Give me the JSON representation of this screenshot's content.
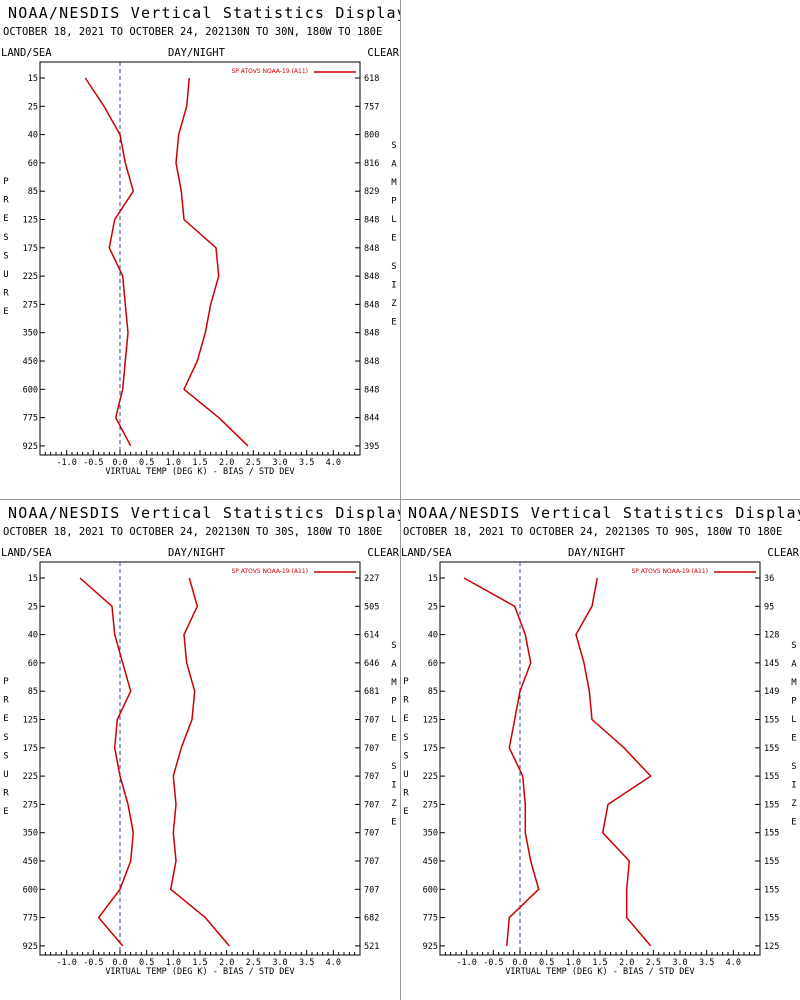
{
  "colors": {
    "series": "#cc0000",
    "zero_line": "#334499",
    "frame": "#000000"
  },
  "pressure_levels": [
    "15",
    "25",
    "40",
    "60",
    "85",
    "125",
    "175",
    "225",
    "275",
    "350",
    "450",
    "600",
    "775",
    "925"
  ],
  "x_ticks": [
    "-1.0",
    "-0.5",
    "0.0",
    "0.5",
    "1.0",
    "1.5",
    "2.0",
    "2.5",
    "3.0",
    "3.5",
    "4.0"
  ],
  "left_vertical_label": "PRESSURE",
  "right_vertical_label": "SAMPLE SIZE",
  "legend_label": "SP ATOVS NOAA-19 (A11)",
  "xlabel": "VIRTUAL TEMP (DEG K) - BIAS / STD DEV",
  "panels": [
    {
      "title": "NOAA/NESDIS Vertical Statistics Display",
      "dates": "OCTOBER 18, 2021 TO OCTOBER 24, 2021",
      "region": "30N TO 30N, 180W TO 180E",
      "land_sea": "LAND/SEA",
      "day_night": "DAY/NIGHT",
      "clear": "CLEAR",
      "sample_sizes": [
        "618",
        "757",
        "800",
        "816",
        "829",
        "848",
        "848",
        "848",
        "848",
        "848",
        "848",
        "848",
        "844",
        "395"
      ]
    },
    {
      "title": "NOAA/NESDIS Vertical Statistics Display",
      "dates": "OCTOBER 18, 2021 TO OCTOBER 24, 2021",
      "region": "30N TO 30S, 180W TO 180E",
      "land_sea": "LAND/SEA",
      "day_night": "DAY/NIGHT",
      "clear": "CLEAR",
      "sample_sizes": [
        "227",
        "505",
        "614",
        "646",
        "681",
        "707",
        "707",
        "707",
        "707",
        "707",
        "707",
        "707",
        "682",
        "521"
      ]
    },
    {
      "title": "NOAA/NESDIS Vertical Statistics Display",
      "dates": "OCTOBER 18, 2021 TO OCTOBER 24, 2021",
      "region": "30S TO 90S, 180W TO 180E",
      "land_sea": "LAND/SEA",
      "day_night": "DAY/NIGHT",
      "clear": "CLEAR",
      "sample_sizes": [
        "36",
        "95",
        "128",
        "145",
        "149",
        "155",
        "155",
        "155",
        "155",
        "155",
        "155",
        "155",
        "155",
        "125"
      ]
    }
  ],
  "chart_data": [
    {
      "type": "line",
      "xlabel": "VIRTUAL TEMP (DEG K) - BIAS / STD DEV",
      "ylabel": "PRESSURE",
      "xlim": [
        -1.5,
        4.5
      ],
      "y": [
        15,
        25,
        40,
        60,
        85,
        125,
        175,
        225,
        275,
        350,
        450,
        600,
        775,
        925
      ],
      "series": [
        {
          "name": "bias",
          "values": [
            -0.65,
            -0.3,
            0.0,
            0.1,
            0.25,
            -0.1,
            -0.2,
            0.05,
            0.1,
            0.15,
            0.1,
            0.05,
            -0.08,
            0.2
          ]
        },
        {
          "name": "std_dev",
          "values": [
            1.3,
            1.25,
            1.1,
            1.05,
            1.15,
            1.2,
            1.8,
            1.85,
            1.7,
            1.6,
            1.45,
            1.2,
            1.85,
            2.4
          ]
        }
      ]
    },
    {
      "type": "line",
      "xlabel": "VIRTUAL TEMP (DEG K) - BIAS / STD DEV",
      "ylabel": "PRESSURE",
      "xlim": [
        -1.5,
        4.5
      ],
      "y": [
        15,
        25,
        40,
        60,
        85,
        125,
        175,
        225,
        275,
        350,
        450,
        600,
        775,
        925
      ],
      "series": [
        {
          "name": "bias",
          "values": [
            -0.75,
            -0.15,
            -0.1,
            0.05,
            0.2,
            -0.05,
            -0.1,
            0.0,
            0.15,
            0.25,
            0.2,
            0.0,
            -0.4,
            0.05
          ]
        },
        {
          "name": "std_dev",
          "values": [
            1.3,
            1.45,
            1.2,
            1.25,
            1.4,
            1.35,
            1.15,
            1.0,
            1.05,
            1.0,
            1.05,
            0.95,
            1.6,
            2.05
          ]
        }
      ]
    },
    {
      "type": "line",
      "xlabel": "VIRTUAL TEMP (DEG K) - BIAS / STD DEV",
      "ylabel": "PRESSURE",
      "xlim": [
        -1.5,
        4.5
      ],
      "y": [
        15,
        25,
        40,
        60,
        85,
        125,
        175,
        225,
        275,
        350,
        450,
        600,
        775,
        925
      ],
      "series": [
        {
          "name": "bias",
          "values": [
            -1.05,
            -0.1,
            0.1,
            0.2,
            0.0,
            -0.1,
            -0.2,
            0.05,
            0.1,
            0.1,
            0.2,
            0.35,
            -0.2,
            -0.25
          ]
        },
        {
          "name": "std_dev",
          "values": [
            1.45,
            1.35,
            1.05,
            1.2,
            1.3,
            1.35,
            1.95,
            2.45,
            1.65,
            1.55,
            2.05,
            2.0,
            2.0,
            2.45
          ]
        }
      ]
    }
  ]
}
